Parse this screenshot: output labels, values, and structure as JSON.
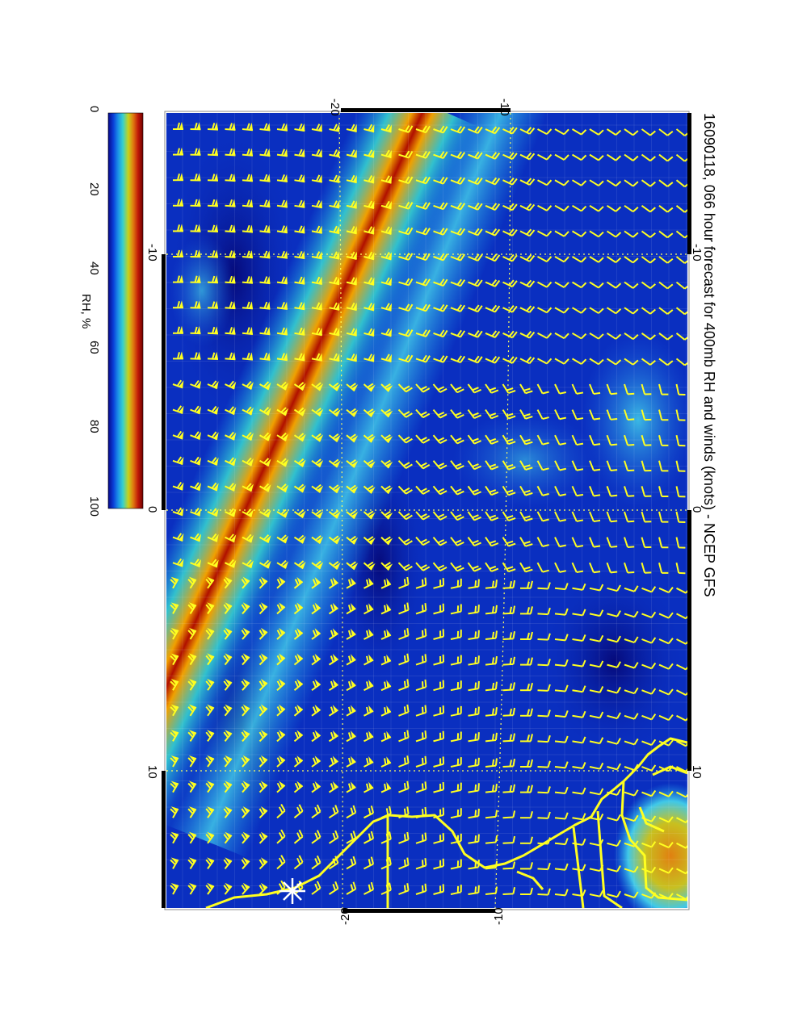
{
  "title": "16090118, 066 hour forecast for 400mb RH and winds (knots) - NCEP GFS",
  "colorbar": {
    "label": "RH, %",
    "ticks": [
      "0",
      "20",
      "40",
      "60",
      "80",
      "100"
    ],
    "stops": [
      "#07078a",
      "#0a3fd8",
      "#1a8fe8",
      "#35d0d0",
      "#c8d21a",
      "#e07810",
      "#c01808",
      "#700000"
    ]
  },
  "map": {
    "top_ticks": [
      "-20",
      "-10"
    ],
    "bottom_ticks": [
      "-20",
      "-10"
    ],
    "left_ticks": [
      "-10",
      "0",
      "10"
    ],
    "right_ticks": [
      "-10",
      "0",
      "10"
    ],
    "colors": {
      "background": "#0a2fc0",
      "deep": "#06108a",
      "moist": "#40c8e8",
      "band_core": "#b01000",
      "band_edge": "#f0a000",
      "barb": "#ffff20",
      "coast": "#ffff20",
      "grid": "#ffff60"
    },
    "marker": "star-marker"
  }
}
